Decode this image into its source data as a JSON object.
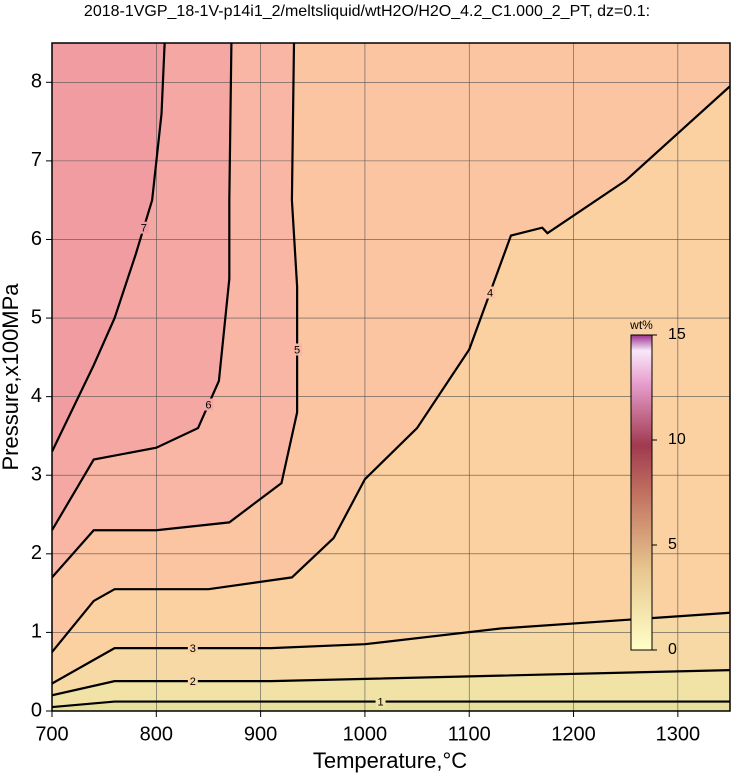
{
  "chart_data": {
    "type": "contour",
    "title": "2018-1VGP_18-1V-p14i1_2/meltsliquid/wtH2O/H2O_4.2_C1.000_2_PT, dz=0.1:",
    "xlabel": "Temperature,°C",
    "ylabel": "Pressure,x100MPa",
    "xlim": [
      700,
      1350
    ],
    "ylim": [
      0,
      8.5
    ],
    "xticks": [
      700,
      800,
      900,
      1000,
      1100,
      1200,
      1300
    ],
    "yticks": [
      0,
      1,
      2,
      3,
      4,
      5,
      6,
      7,
      8
    ],
    "grid": true,
    "colorbar": {
      "label": "wt%",
      "lim": [
        0,
        15
      ],
      "ticks": [
        0,
        5,
        10,
        15
      ]
    },
    "series": [
      {
        "level": 1,
        "color": "#f1e3a6",
        "x": [
          700,
          760,
          900,
          1130,
          1350
        ],
        "y": [
          0.05,
          0.12,
          0.12,
          0.12,
          0.12
        ]
      },
      {
        "level": 2,
        "color": "#f6d9a4",
        "x": [
          700,
          760,
          910,
          1130,
          1350
        ],
        "y": [
          0.2,
          0.38,
          0.38,
          0.45,
          0.52
        ]
      },
      {
        "level": 3,
        "color": "#fbd1a2",
        "x": [
          700,
          760,
          910,
          1000,
          1130,
          1350
        ],
        "y": [
          0.35,
          0.8,
          0.8,
          0.85,
          1.05,
          1.25
        ]
      },
      {
        "level": 4,
        "color": "#fcc5a2",
        "x": [
          700,
          740,
          760,
          850,
          930,
          970,
          1000,
          1050,
          1100,
          1140,
          1170,
          1175,
          1250,
          1350
        ],
        "y": [
          0.75,
          1.4,
          1.55,
          1.55,
          1.7,
          2.2,
          2.95,
          3.6,
          4.6,
          6.05,
          6.15,
          6.08,
          6.75,
          7.95
        ]
      },
      {
        "level": 5,
        "color": "#f9b6a4",
        "x": [
          700,
          740,
          800,
          870,
          920,
          935,
          935,
          930,
          932
        ],
        "y": [
          1.7,
          2.3,
          2.3,
          2.4,
          2.9,
          3.8,
          5.4,
          6.5,
          8.5
        ]
      },
      {
        "level": 6,
        "color": "#f5a8a3",
        "x": [
          700,
          740,
          800,
          840,
          860,
          870,
          870,
          872
        ],
        "y": [
          2.3,
          3.2,
          3.35,
          3.6,
          4.2,
          5.5,
          6.5,
          8.5
        ]
      },
      {
        "level": 7,
        "color": "#f09ca1",
        "x": [
          700,
          740,
          760,
          780,
          796,
          805,
          808
        ],
        "y": [
          3.3,
          4.4,
          5.0,
          5.8,
          6.5,
          7.6,
          8.5
        ]
      }
    ]
  }
}
